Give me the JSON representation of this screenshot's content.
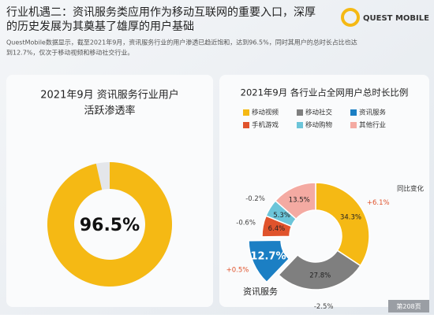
{
  "header": {
    "title_lines": [
      "行业机遇二：资讯服务类应用作为移动互联网的重要入口，深厚",
      "的历史发展为其奠基了雄厚的用户基础"
    ],
    "subtitle_lines": [
      "QuestMobile数据显示，截至2021年9月，资讯服务行业的用户渗透已趋近饱和，达到96.5%，同时其用户的总时长占比也达",
      "到12.7%，仅次于移动视频和移动社交行业。"
    ],
    "brand": "QUEST MOBILE"
  },
  "chart_data": [
    {
      "type": "gauge",
      "title_lines": [
        "2021年9月 资讯服务行业用户",
        "活跃渗透率"
      ],
      "value": 96.5,
      "value_label": "96.5%",
      "range": [
        0,
        100
      ],
      "color": "#f5b914",
      "track_color": "#e4e6ea"
    },
    {
      "type": "pie",
      "title": "2021年9月  各行业占全网用户总时长比例",
      "categories": [
        "移动视频",
        "移动社交",
        "资讯服务",
        "手机游戏",
        "移动购物",
        "其他行业"
      ],
      "values": [
        34.3,
        27.8,
        12.7,
        6.4,
        5.3,
        13.5
      ],
      "value_labels": [
        "34.3%",
        "27.8%",
        "12.7%",
        "6.4%",
        "5.3%",
        "13.5%"
      ],
      "colors": [
        "#f5b914",
        "#7f7f7f",
        "#1b7fc4",
        "#e0532c",
        "#6cc5d9",
        "#f4aaa2"
      ],
      "changes": [
        6.1,
        -2.5,
        0.5,
        -0.6,
        -0.2,
        null
      ],
      "change_labels": [
        "+6.1%",
        "-2.5%",
        "+0.5%",
        "-0.6%",
        "-0.2%",
        null
      ],
      "change_title": "同比变化",
      "highlight": 2,
      "highlight_label": "资讯服务"
    }
  ],
  "footer": {
    "page": "第208页"
  }
}
